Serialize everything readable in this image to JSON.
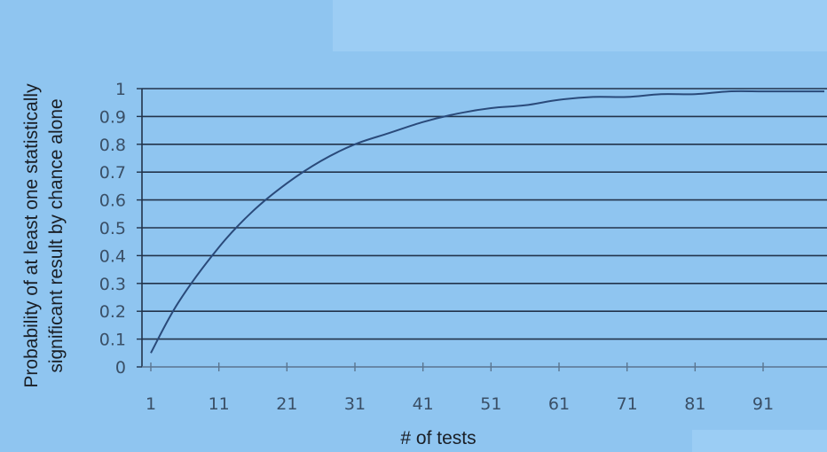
{
  "chart_data": {
    "type": "line",
    "xlabel": "# of tests",
    "ylabel_lines": [
      "Probability of at least one statistically",
      "significant result by chance alone"
    ],
    "xlim": [
      1,
      100
    ],
    "ylim": [
      0,
      1
    ],
    "x_ticks": [
      1,
      11,
      21,
      31,
      41,
      51,
      61,
      71,
      81,
      91
    ],
    "x_tick_labels": [
      "1",
      "11",
      "21",
      "31",
      "41",
      "51",
      "61",
      "71",
      "81",
      "91"
    ],
    "y_ticks": [
      0,
      0.1,
      0.2,
      0.3,
      0.4,
      0.5,
      0.6,
      0.7,
      0.8,
      0.9,
      1
    ],
    "y_tick_labels": [
      "0",
      "0.1",
      "0.2",
      "0.3",
      "0.4",
      "0.5",
      "0.6",
      "0.7",
      "0.8",
      "0.9",
      "1"
    ],
    "grid": "horizontal",
    "legend": "none",
    "series": [
      {
        "x": [
          1,
          5,
          11,
          16,
          21,
          26,
          31,
          36,
          41,
          46,
          51,
          56,
          61,
          66,
          71,
          76,
          81,
          86,
          91,
          96,
          100
        ],
        "values": [
          0.05,
          0.23,
          0.43,
          0.56,
          0.66,
          0.74,
          0.8,
          0.84,
          0.88,
          0.91,
          0.93,
          0.94,
          0.96,
          0.97,
          0.97,
          0.98,
          0.98,
          0.99,
          0.99,
          0.99,
          0.99
        ]
      }
    ],
    "colors": {
      "background": "#8fc5f0",
      "gridline": "#22334a",
      "line": "#2a4a7a",
      "tick_label": "#3a4f66",
      "axis_title": "#1a1f26"
    }
  }
}
